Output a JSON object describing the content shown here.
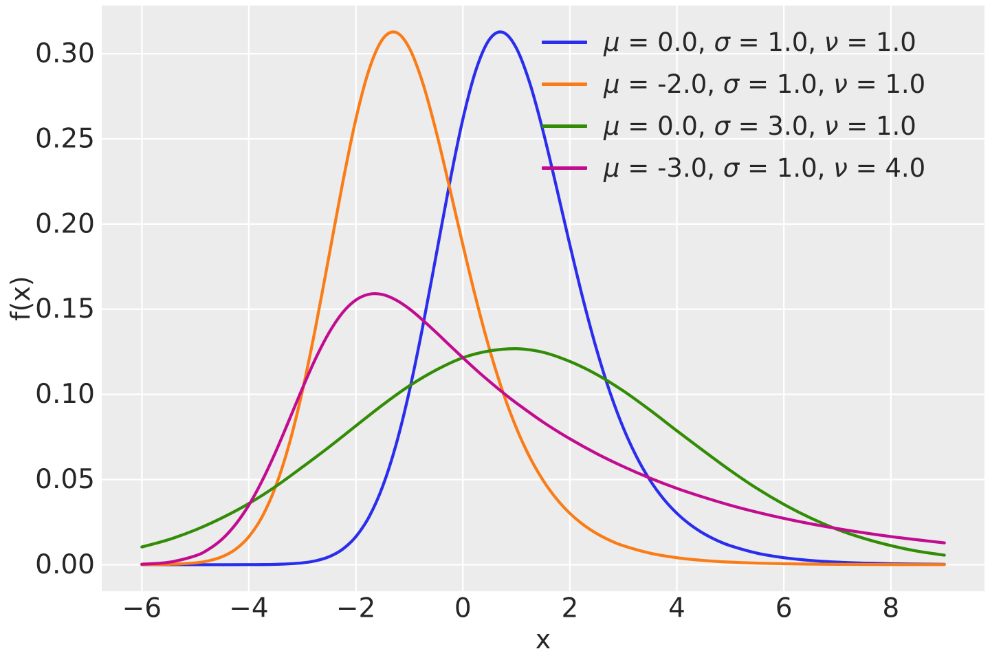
{
  "figure": {
    "background": "#ffffff",
    "axes_background": "#ececec",
    "grid_color": "#ffffff",
    "text_color": "#262626",
    "tick_font_size": 39,
    "label_font_size": 38,
    "line_width": 4.3,
    "grid_line_width": 2.3
  },
  "chart_data": {
    "type": "line",
    "title": "",
    "xlabel": "x",
    "ylabel": "f(x)",
    "xlim": [
      -6.75,
      9.75
    ],
    "ylim": [
      -0.0156,
      0.3283
    ],
    "grid": true,
    "legend_position": "upper right",
    "legend_frame": false,
    "xticks": {
      "values": [
        -6,
        -4,
        -2,
        0,
        2,
        4,
        6,
        8
      ],
      "labels": [
        "−6",
        "−4",
        "−2",
        "0",
        "2",
        "4",
        "6",
        "8"
      ]
    },
    "yticks": {
      "values": [
        0.0,
        0.05,
        0.1,
        0.15,
        0.2,
        0.25,
        0.3
      ],
      "labels": [
        "0.00",
        "0.05",
        "0.10",
        "0.15",
        "0.20",
        "0.25",
        "0.30"
      ]
    },
    "series": [
      {
        "name": "μ = 0.0, σ = 1.0, ν = 1.0",
        "color": "#2a2eec",
        "mu": 0.0,
        "sigma": 1.0,
        "nu": 1.0,
        "x": [
          -6,
          -5,
          -4.5,
          -4,
          -3.5,
          -3,
          -2.75,
          -2.5,
          -2.25,
          -2,
          -1.75,
          -1.5,
          -1.25,
          -1,
          -0.75,
          -0.5,
          -0.25,
          0,
          0.25,
          0.5,
          0.75,
          1,
          1.25,
          1.5,
          1.75,
          2,
          2.25,
          2.5,
          2.75,
          3,
          3.25,
          3.5,
          3.75,
          4,
          4.25,
          4.5,
          4.75,
          5,
          5.5,
          6,
          6.5,
          7,
          7.5,
          8,
          8.5,
          9
        ],
        "y": [
          0,
          0,
          0,
          3e-05,
          0.00019,
          0.00105,
          0.00228,
          0.00467,
          0.00903,
          0.01645,
          0.02827,
          0.04589,
          0.07034,
          0.10196,
          0.13982,
          0.18161,
          0.22366,
          0.26161,
          0.291,
          0.30854,
          0.31253,
          0.30327,
          0.28281,
          0.25438,
          0.22157,
          0.18773,
          0.15541,
          0.12629,
          0.10118,
          0.08022,
          0.06315,
          0.04948,
          0.03866,
          0.03016,
          0.0235,
          0.01831,
          0.01426,
          0.01111,
          0.00674,
          0.00409,
          0.00248,
          0.0015,
          0.00091,
          0.00055,
          0.00034,
          0.0002
        ]
      },
      {
        "name": "μ = -2.0, σ = 1.0, ν = 1.0",
        "color": "#fa7c17",
        "mu": -2.0,
        "sigma": 1.0,
        "nu": 1.0,
        "x": [
          -6,
          -5.5,
          -5,
          -4.75,
          -4.5,
          -4.25,
          -4,
          -3.75,
          -3.5,
          -3.25,
          -3,
          -2.75,
          -2.5,
          -2.25,
          -2,
          -1.75,
          -1.5,
          -1.25,
          -1,
          -0.75,
          -0.5,
          -0.25,
          0,
          0.25,
          0.5,
          0.75,
          1,
          1.25,
          1.5,
          1.75,
          2,
          2.25,
          2.5,
          2.75,
          3,
          3.5,
          4,
          4.5,
          5,
          5.5,
          6,
          6.5,
          7,
          7.5,
          8,
          8.5,
          9
        ],
        "y": [
          3e-05,
          0.00019,
          0.00105,
          0.00228,
          0.00467,
          0.00903,
          0.01645,
          0.02827,
          0.04589,
          0.07034,
          0.10196,
          0.13982,
          0.18161,
          0.22366,
          0.26161,
          0.291,
          0.30854,
          0.31253,
          0.30327,
          0.28281,
          0.25438,
          0.22157,
          0.18773,
          0.15541,
          0.12629,
          0.10118,
          0.08022,
          0.06315,
          0.04948,
          0.03866,
          0.03016,
          0.0235,
          0.01831,
          0.01426,
          0.01111,
          0.00674,
          0.00409,
          0.00248,
          0.0015,
          0.00091,
          0.00055,
          0.00034,
          0.0002,
          0.00012,
          7e-05,
          5e-05,
          3e-05
        ]
      },
      {
        "name": "μ = 0.0, σ = 3.0, ν = 1.0",
        "color": "#328c06",
        "mu": 0.0,
        "sigma": 3.0,
        "nu": 1.0,
        "x": [
          -6,
          -5.5,
          -5,
          -4.5,
          -4,
          -3.5,
          -3,
          -2.5,
          -2,
          -1.5,
          -1,
          -0.5,
          0,
          0.5,
          1,
          1.5,
          2,
          2.5,
          3,
          3.5,
          4,
          4.5,
          5,
          5.5,
          6,
          6.5,
          7,
          7.5,
          8,
          8.5,
          9
        ],
        "y": [
          0.0104,
          0.0147,
          0.0204,
          0.0275,
          0.0359,
          0.0459,
          0.0573,
          0.0691,
          0.0815,
          0.0938,
          0.105,
          0.1143,
          0.1215,
          0.1255,
          0.1268,
          0.1247,
          0.1193,
          0.1117,
          0.102,
          0.0907,
          0.0786,
          0.0668,
          0.0553,
          0.0447,
          0.0354,
          0.0274,
          0.0207,
          0.0154,
          0.0112,
          0.0079,
          0.0056
        ]
      },
      {
        "name": "μ = -3.0, σ = 1.0, ν = 4.0",
        "color": "#c10c90",
        "mu": -3.0,
        "sigma": 1.0,
        "nu": 4.0,
        "x": [
          -6,
          -5.5,
          -5,
          -4.75,
          -4.5,
          -4.25,
          -4,
          -3.75,
          -3.5,
          -3.25,
          -3,
          -2.75,
          -2.5,
          -2.25,
          -2,
          -1.75,
          -1.5,
          -1.25,
          -1,
          -0.75,
          -0.5,
          -0.25,
          0,
          0.25,
          0.5,
          0.75,
          1,
          1.5,
          2,
          2.5,
          3,
          3.5,
          4,
          4.5,
          5,
          5.5,
          6,
          6.5,
          7,
          7.5,
          8,
          8.5,
          9
        ],
        "y": [
          0.0003,
          0.0014,
          0.0052,
          0.0091,
          0.015,
          0.0236,
          0.035,
          0.0494,
          0.0662,
          0.0847,
          0.1035,
          0.1212,
          0.1363,
          0.1479,
          0.1554,
          0.1588,
          0.1586,
          0.1554,
          0.1502,
          0.1436,
          0.1364,
          0.1289,
          0.1215,
          0.1143,
          0.1075,
          0.101,
          0.0949,
          0.0837,
          0.0739,
          0.0652,
          0.0576,
          0.0508,
          0.0448,
          0.0396,
          0.0349,
          0.0308,
          0.0272,
          0.024,
          0.0212,
          0.0187,
          0.0165,
          0.0146,
          0.0128
        ]
      }
    ]
  }
}
